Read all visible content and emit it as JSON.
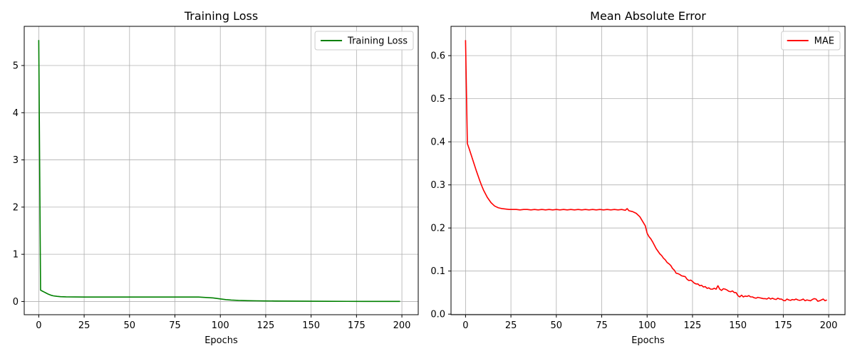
{
  "chart_data": [
    {
      "type": "line",
      "title": "Training Loss",
      "xlabel": "Epochs",
      "ylabel": "",
      "xlim": [
        -8,
        209
      ],
      "ylim": [
        -0.28,
        5.83
      ],
      "xticks": [
        0,
        25,
        50,
        75,
        100,
        125,
        150,
        175,
        200
      ],
      "yticks": [
        0,
        1,
        2,
        3,
        4,
        5
      ],
      "grid": true,
      "legend_position": "upper-right",
      "series": [
        {
          "name": "Training Loss",
          "color": "#008000",
          "x": [
            0,
            1,
            2,
            3,
            4,
            5,
            6,
            7,
            8,
            10,
            12,
            15,
            20,
            25,
            30,
            40,
            50,
            60,
            70,
            80,
            88,
            92,
            96,
            100,
            103,
            106,
            110,
            115,
            120,
            125,
            130,
            140,
            150,
            160,
            170,
            180,
            190,
            199
          ],
          "y": [
            5.54,
            0.24,
            0.22,
            0.2,
            0.18,
            0.16,
            0.145,
            0.13,
            0.12,
            0.11,
            0.102,
            0.098,
            0.096,
            0.095,
            0.095,
            0.095,
            0.095,
            0.095,
            0.095,
            0.095,
            0.094,
            0.085,
            0.075,
            0.055,
            0.04,
            0.03,
            0.022,
            0.017,
            0.014,
            0.012,
            0.01,
            0.008,
            0.006,
            0.004,
            0.003,
            0.002,
            0.002,
            0.002
          ]
        }
      ]
    },
    {
      "type": "line",
      "title": "Mean Absolute Error",
      "xlabel": "Epochs",
      "ylabel": "",
      "xlim": [
        -8,
        209
      ],
      "ylim": [
        -0.0013,
        0.668
      ],
      "xticks": [
        0,
        25,
        50,
        75,
        100,
        125,
        150,
        175,
        200
      ],
      "yticks": [
        0.0,
        0.1,
        0.2,
        0.3,
        0.4,
        0.5,
        0.6
      ],
      "grid": true,
      "legend_position": "upper-right",
      "series": [
        {
          "name": "MAE",
          "color": "#ff0000",
          "x": [
            0,
            1,
            2,
            3,
            4,
            5,
            6,
            7,
            8,
            9,
            10,
            11,
            12,
            13,
            14,
            15,
            16,
            17,
            18,
            19,
            20,
            22,
            24,
            26,
            28,
            30,
            32,
            34,
            36,
            38,
            40,
            42,
            44,
            46,
            48,
            50,
            52,
            54,
            56,
            58,
            60,
            62,
            64,
            66,
            68,
            70,
            72,
            74,
            76,
            78,
            80,
            82,
            84,
            86,
            88,
            89,
            90,
            92,
            94,
            96,
            98,
            99,
            100,
            101,
            102,
            103,
            104,
            105,
            106,
            107,
            108,
            109,
            110,
            111,
            112,
            113,
            114,
            115,
            116,
            117,
            118,
            119,
            120,
            121,
            122,
            123,
            124,
            125,
            126,
            127,
            128,
            129,
            130,
            131,
            132,
            133,
            134,
            135,
            136,
            137,
            138,
            139,
            140,
            141,
            142,
            143,
            144,
            145,
            146,
            147,
            148,
            149,
            150,
            151,
            152,
            153,
            154,
            155,
            156,
            157,
            158,
            159,
            160,
            161,
            162,
            163,
            164,
            165,
            166,
            167,
            168,
            169,
            170,
            171,
            172,
            173,
            174,
            175,
            176,
            177,
            178,
            179,
            180,
            181,
            182,
            183,
            184,
            185,
            186,
            187,
            188,
            189,
            190,
            191,
            192,
            193,
            194,
            195,
            196,
            197,
            198,
            199
          ],
          "y": [
            0.636,
            0.396,
            0.384,
            0.371,
            0.358,
            0.345,
            0.332,
            0.32,
            0.308,
            0.297,
            0.287,
            0.279,
            0.271,
            0.265,
            0.259,
            0.255,
            0.251,
            0.249,
            0.247,
            0.246,
            0.245,
            0.244,
            0.243,
            0.243,
            0.243,
            0.242,
            0.243,
            0.243,
            0.242,
            0.243,
            0.242,
            0.243,
            0.242,
            0.243,
            0.242,
            0.243,
            0.242,
            0.243,
            0.242,
            0.243,
            0.242,
            0.243,
            0.242,
            0.243,
            0.242,
            0.243,
            0.242,
            0.243,
            0.242,
            0.243,
            0.242,
            0.243,
            0.242,
            0.243,
            0.241,
            0.245,
            0.24,
            0.238,
            0.234,
            0.226,
            0.212,
            0.205,
            0.188,
            0.18,
            0.175,
            0.168,
            0.16,
            0.152,
            0.146,
            0.14,
            0.136,
            0.13,
            0.126,
            0.12,
            0.117,
            0.113,
            0.106,
            0.102,
            0.095,
            0.094,
            0.092,
            0.089,
            0.088,
            0.087,
            0.081,
            0.078,
            0.079,
            0.076,
            0.072,
            0.07,
            0.07,
            0.066,
            0.067,
            0.063,
            0.064,
            0.06,
            0.061,
            0.058,
            0.058,
            0.06,
            0.058,
            0.066,
            0.058,
            0.055,
            0.059,
            0.058,
            0.056,
            0.053,
            0.052,
            0.054,
            0.05,
            0.05,
            0.043,
            0.04,
            0.044,
            0.04,
            0.042,
            0.041,
            0.043,
            0.04,
            0.04,
            0.038,
            0.037,
            0.039,
            0.038,
            0.037,
            0.036,
            0.036,
            0.035,
            0.038,
            0.035,
            0.037,
            0.035,
            0.034,
            0.037,
            0.035,
            0.035,
            0.032,
            0.031,
            0.035,
            0.033,
            0.032,
            0.034,
            0.033,
            0.035,
            0.033,
            0.032,
            0.033,
            0.035,
            0.031,
            0.033,
            0.032,
            0.031,
            0.034,
            0.036,
            0.035,
            0.03,
            0.031,
            0.033,
            0.035,
            0.031,
            0.033
          ]
        }
      ]
    }
  ]
}
